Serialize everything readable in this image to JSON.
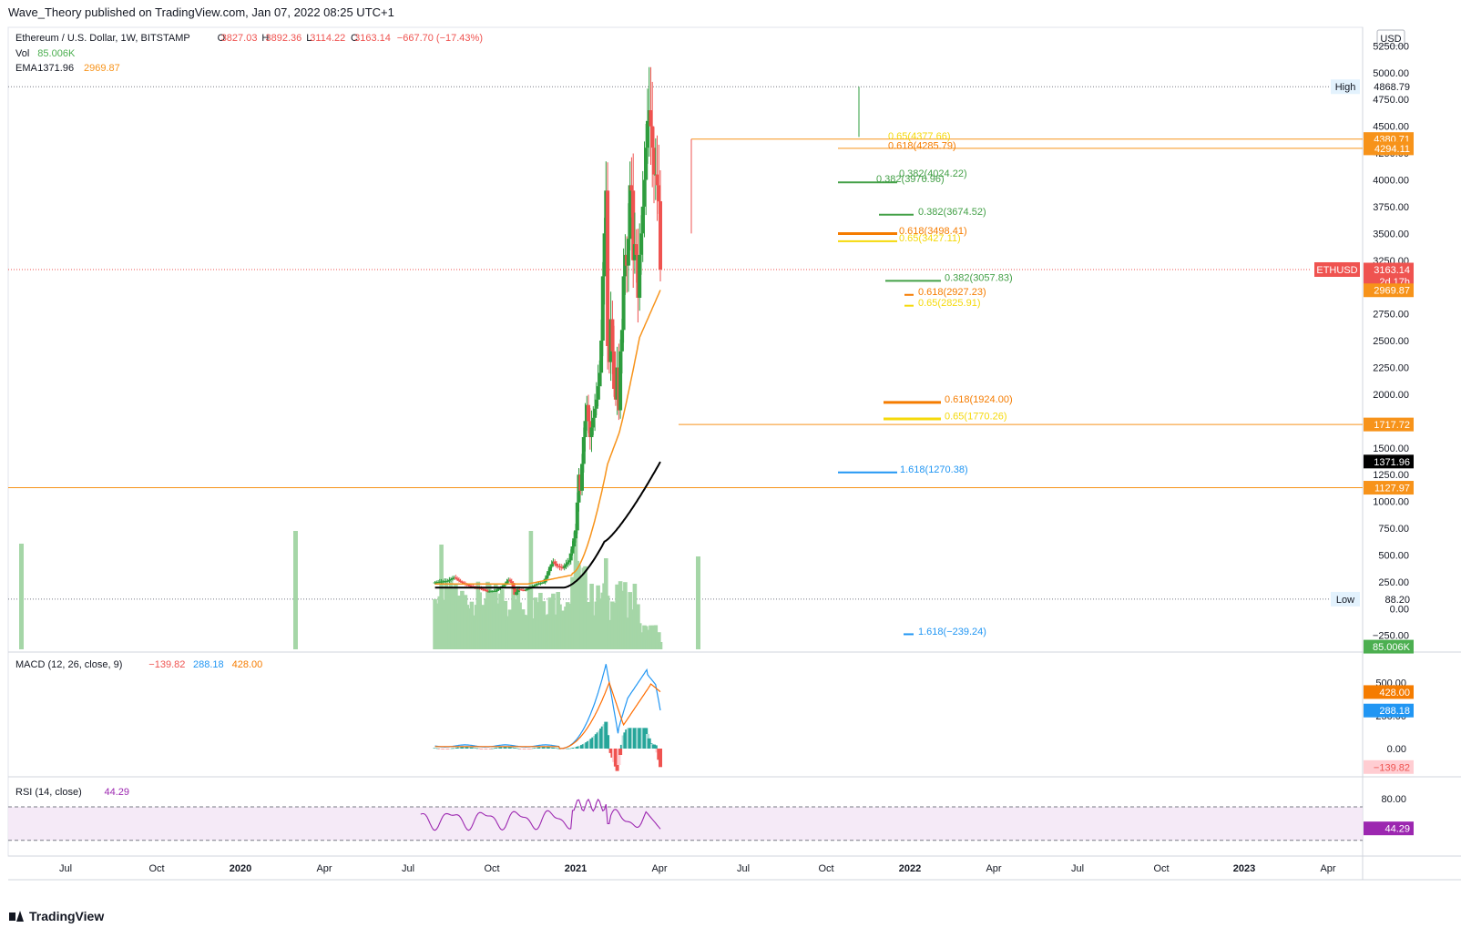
{
  "published_line": "Wave_Theory published on TradingView.com, Jan 07, 2022 08:25 UTC+1",
  "brand": "TradingView",
  "currency": "USD",
  "legend": {
    "symbol": "Ethereum / U.S. Dollar, 1W, BITSTAMP",
    "o_label": "O",
    "o_value": "3827.03",
    "h_label": "H",
    "h_value": "3892.36",
    "l_label": "L",
    "l_value": "3114.22",
    "c_label": "C",
    "c_value": "3163.14",
    "change": "−667.70 (−17.43%)",
    "vol_label": "Vol",
    "vol_value": "85.006K",
    "ema_label": "EMA",
    "ema_value1": "1371.96",
    "ema_value2": "2969.87"
  },
  "macd_legend": {
    "label": "MACD (12, 26, close, 9)",
    "v1": "−139.82",
    "v2": "288.18",
    "v3": "428.00"
  },
  "rsi_legend": {
    "label": "RSI (14, close)",
    "v": "44.29"
  },
  "price_axis_ticks": [
    "5250.00",
    "5000.00",
    "4750.00",
    "4500.00",
    "4250.00",
    "4000.00",
    "3750.00",
    "3500.00",
    "3250.00",
    "2750.00",
    "2500.00",
    "2250.00",
    "2000.00",
    "1750.00",
    "1500.00",
    "1250.00",
    "1000.00",
    "750.00",
    "500.00",
    "250.00",
    "0.00",
    "−250.00"
  ],
  "macd_axis_ticks": [
    "500.00",
    "250.00",
    "0.00"
  ],
  "rsi_axis_ticks": [
    "80.00"
  ],
  "price_badges": [
    {
      "text": "4868.79",
      "label": "High",
      "style": "plain"
    },
    {
      "text": "4380.71",
      "style": "orange"
    },
    {
      "text": "4294.11",
      "style": "orange"
    },
    {
      "text": "3163.14",
      "sub": "2d 17h",
      "label": "ETHUSD",
      "style": "red"
    },
    {
      "text": "2969.87",
      "style": "orange"
    },
    {
      "text": "1717.72",
      "style": "orange"
    },
    {
      "text": "1371.96",
      "style": "black"
    },
    {
      "text": "1127.97",
      "style": "orange"
    },
    {
      "text": "88.20",
      "label": "Low",
      "style": "plain"
    },
    {
      "text": "85.006K",
      "style": "green"
    }
  ],
  "macd_badges": [
    {
      "text": "428.00",
      "style": "orange"
    },
    {
      "text": "288.18",
      "style": "blue"
    },
    {
      "text": "−139.82",
      "style": "lightred"
    }
  ],
  "rsi_badges": [
    {
      "text": "44.29",
      "style": "purple"
    }
  ],
  "fib_labels": [
    {
      "text": "0.65(4377.66)",
      "color": "#f5d90a"
    },
    {
      "text": "0.618(4285.79)",
      "color": "#f57c00"
    },
    {
      "text": "0.382(4024.22)",
      "color": "#43a047"
    },
    {
      "text": "0.382(3976.96)",
      "color": "#43a047"
    },
    {
      "text": "0.382(3674.52)",
      "color": "#43a047"
    },
    {
      "text": "0.618(3498.41)",
      "color": "#f57c00"
    },
    {
      "text": "0.65(3427.11)",
      "color": "#f5d90a"
    },
    {
      "text": "0.382(3057.83)",
      "color": "#43a047"
    },
    {
      "text": "0.618(2927.23)",
      "color": "#f57c00"
    },
    {
      "text": "0.65(2825.91)",
      "color": "#f5d90a"
    },
    {
      "text": "0.618(1924.00)",
      "color": "#f57c00"
    },
    {
      "text": "0.65(1770.26)",
      "color": "#f5d90a"
    },
    {
      "text": "1.618(1270.38)",
      "color": "#2196f3"
    },
    {
      "text": "1.618(−239.24)",
      "color": "#2196f3"
    }
  ],
  "time_axis_labels": [
    {
      "text": "Jul",
      "bold": false
    },
    {
      "text": "Oct",
      "bold": false
    },
    {
      "text": "2020",
      "bold": true
    },
    {
      "text": "Apr",
      "bold": false
    },
    {
      "text": "Jul",
      "bold": false
    },
    {
      "text": "Oct",
      "bold": false
    },
    {
      "text": "2021",
      "bold": true
    },
    {
      "text": "Apr",
      "bold": false
    },
    {
      "text": "Jul",
      "bold": false
    },
    {
      "text": "Oct",
      "bold": false
    },
    {
      "text": "2022",
      "bold": true
    },
    {
      "text": "Apr",
      "bold": false
    },
    {
      "text": "Jul",
      "bold": false
    },
    {
      "text": "Oct",
      "bold": false
    },
    {
      "text": "2023",
      "bold": true
    },
    {
      "text": "Apr",
      "bold": false
    }
  ],
  "colors": {
    "up": "#26a69a",
    "candle_up": "#2e9d3e",
    "candle_down": "#ef5350",
    "ema_fast": "#f7931a",
    "ema_slow": "#000000",
    "rsi_line": "#9c27b0",
    "macd_line": "#2196f3",
    "signal_line": "#ff6d00"
  }
}
